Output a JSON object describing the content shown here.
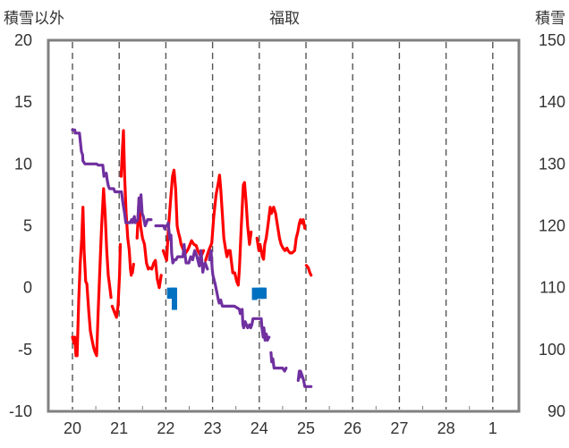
{
  "chart_data": {
    "type": "line",
    "title": "福取",
    "ylabel_left": "積雪以外",
    "ylabel_right": "積雪",
    "grid": true,
    "x_tick_labels": [
      "20",
      "21",
      "22",
      "23",
      "24",
      "25",
      "26",
      "27",
      "28",
      "1"
    ],
    "y_left": {
      "ticks": [
        "20",
        "15",
        "10",
        "5",
        "0",
        "-5",
        "-10"
      ],
      "range": [
        -10,
        20
      ]
    },
    "y_right": {
      "ticks": [
        "150",
        "140",
        "130",
        "120",
        "110",
        "100",
        "90"
      ],
      "range": [
        90,
        150
      ]
    },
    "series": [
      {
        "color": "#ff0000",
        "axis": "left",
        "segments": [
          [
            [
              0,
              -4
            ],
            [
              0.2,
              -4.5
            ],
            [
              0.3,
              -4
            ],
            [
              0.45,
              -5.5
            ],
            [
              0.6,
              -5.5
            ],
            [
              0.8,
              -1
            ],
            [
              1,
              2
            ],
            [
              1.2,
              4
            ],
            [
              1.35,
              6.5
            ],
            [
              1.5,
              3
            ],
            [
              1.7,
              0.5
            ],
            [
              1.85,
              0.3
            ],
            [
              2.1,
              -2
            ],
            [
              2.3,
              -3.5
            ],
            [
              2.5,
              -4.2
            ],
            [
              2.7,
              -4.8
            ],
            [
              2.9,
              -5.2
            ],
            [
              3.1,
              -5.5
            ],
            [
              3.3,
              -2
            ],
            [
              3.55,
              2
            ],
            [
              3.75,
              5
            ],
            [
              4.0,
              8
            ],
            [
              4.2,
              6
            ],
            [
              4.4,
              3
            ],
            [
              4.6,
              1
            ],
            [
              4.8,
              0
            ],
            [
              4.95,
              -0.8
            ]
          ],
          [
            [
              5.1,
              -1.5
            ],
            [
              5.4,
              -2
            ],
            [
              5.65,
              -2.4
            ],
            [
              5.85,
              -1.5
            ],
            [
              6.05,
              1
            ],
            [
              6.15,
              3.5
            ]
          ],
          [
            [
              6.25,
              9
            ],
            [
              6.4,
              11
            ],
            [
              6.55,
              12.7
            ],
            [
              6.7,
              9
            ],
            [
              6.9,
              6
            ],
            [
              7.1,
              4
            ],
            [
              7.3,
              3
            ],
            [
              7.45,
              1.5
            ],
            [
              7.55,
              1
            ]
          ],
          [
            [
              7.7,
              1.2
            ],
            [
              7.85,
              1.9
            ]
          ],
          [
            [
              8.3,
              4
            ],
            [
              8.55,
              7.2
            ],
            [
              8.75,
              5
            ],
            [
              9,
              4
            ],
            [
              9.25,
              3.5
            ],
            [
              9.5,
              2
            ],
            [
              9.75,
              1.5
            ],
            [
              9.9,
              1.6
            ],
            [
              10.2,
              1.5
            ],
            [
              10.45,
              2
            ],
            [
              10.65,
              2.2
            ],
            [
              10.9,
              0.7
            ],
            [
              11.15,
              0
            ],
            [
              11.4,
              1
            ]
          ],
          [
            [
              11.65,
              3
            ],
            [
              12.1,
              2.2
            ],
            [
              12.3,
              4.5
            ],
            [
              12.6,
              7
            ],
            [
              12.85,
              9
            ],
            [
              13.05,
              9.5
            ],
            [
              13.25,
              8
            ],
            [
              13.45,
              5
            ],
            [
              13.6,
              4.5
            ],
            [
              13.8,
              4
            ],
            [
              13.95,
              3.5
            ],
            [
              14.15,
              3.2
            ],
            [
              14.45,
              2.7
            ],
            [
              14.85,
              3.1
            ],
            [
              15.3,
              3.8
            ],
            [
              15.6,
              3.5
            ],
            [
              15.9,
              3.4
            ],
            [
              16.1,
              3
            ],
            [
              16.5,
              2.5
            ],
            [
              16.85,
              3
            ]
          ],
          [
            [
              17.1,
              2.2
            ],
            [
              17.5,
              3
            ],
            [
              17.9,
              3.6
            ],
            [
              18.15,
              5.7
            ],
            [
              18.45,
              7.5
            ],
            [
              18.75,
              8.5
            ],
            [
              18.9,
              9.1
            ],
            [
              19.05,
              8
            ],
            [
              19.25,
              6
            ],
            [
              19.45,
              4
            ],
            [
              19.7,
              3
            ],
            [
              19.85,
              2.5
            ],
            [
              20.05,
              3
            ],
            [
              20.25,
              3
            ],
            [
              20.4,
              2.2
            ],
            [
              20.6,
              1.2
            ],
            [
              20.85,
              1.2
            ],
            [
              21.1,
              0.5
            ],
            [
              21.3,
              0.2
            ],
            [
              21.45,
              1.5
            ],
            [
              21.65,
              4.5
            ],
            [
              21.85,
              7
            ],
            [
              21.95,
              8.3
            ],
            [
              22.1,
              8.5
            ],
            [
              22.3,
              7
            ],
            [
              22.5,
              5
            ],
            [
              22.75,
              3.5
            ],
            [
              22.95,
              4.5
            ]
          ],
          [
            [
              23.7,
              4
            ],
            [
              23.95,
              3
            ],
            [
              24.1,
              3.5
            ],
            [
              24.4,
              2.5
            ],
            [
              24.55,
              2.3
            ],
            [
              24.7,
              3.5
            ],
            [
              24.9,
              4
            ],
            [
              25.15,
              5.2
            ],
            [
              25.4,
              6.5
            ],
            [
              25.55,
              6
            ],
            [
              25.7,
              6.2
            ],
            [
              25.85,
              6.5
            ],
            [
              26.1,
              6
            ],
            [
              26.35,
              5
            ],
            [
              26.6,
              4
            ],
            [
              26.8,
              3.5
            ],
            [
              27.05,
              3.2
            ],
            [
              27.3,
              3
            ],
            [
              27.55,
              3.2
            ],
            [
              27.7,
              3
            ],
            [
              27.95,
              2.8
            ],
            [
              28.2,
              2.8
            ],
            [
              28.55,
              3
            ],
            [
              28.75,
              4
            ],
            [
              28.95,
              4.5
            ],
            [
              29.15,
              5.2
            ],
            [
              29.3,
              5.5
            ],
            [
              29.5,
              5.2
            ],
            [
              29.65,
              5.5
            ],
            [
              29.85,
              4.8
            ]
          ],
          [
            [
              30.05,
              1.8
            ],
            [
              30.3,
              1.6
            ],
            [
              30.5,
              1.2
            ],
            [
              30.65,
              1
            ]
          ]
        ]
      },
      {
        "color": "#7030a0",
        "axis": "right",
        "segments": [
          [
            [
              0,
              135.5
            ],
            [
              0.3,
              135.5
            ],
            [
              0.35,
              135
            ],
            [
              0.9,
              135
            ],
            [
              1.15,
              132
            ],
            [
              1.3,
              131.5
            ],
            [
              1.35,
              130.5
            ],
            [
              1.6,
              130
            ],
            [
              3.1,
              130
            ],
            [
              3.3,
              129.8
            ],
            [
              3.9,
              129.8
            ],
            [
              4.05,
              128
            ],
            [
              4.35,
              128.5
            ],
            [
              4.45,
              127.5
            ],
            [
              4.6,
              126.5
            ],
            [
              4.75,
              126
            ],
            [
              5.3,
              126
            ],
            [
              5.45,
              125.5
            ],
            [
              6.3,
              125.5
            ],
            [
              6.5,
              123.5
            ],
            [
              6.7,
              122
            ],
            [
              6.85,
              120.5
            ],
            [
              7.4,
              120.5
            ],
            [
              7.6,
              121
            ],
            [
              7.7,
              120.5
            ],
            [
              7.95,
              121.5
            ],
            [
              8.05,
              120.5
            ],
            [
              8.4,
              121
            ],
            [
              8.55,
              124.5
            ],
            [
              8.65,
              122.5
            ],
            [
              8.8,
              125
            ],
            [
              8.95,
              122
            ],
            [
              9.1,
              121.5
            ],
            [
              9.35,
              120
            ],
            [
              9.65,
              121
            ],
            [
              10.1,
              121
            ]
          ],
          [
            [
              10.7,
              120
            ],
            [
              11.7,
              120
            ],
            [
              11.85,
              119.5
            ],
            [
              12.0,
              120
            ],
            [
              12.2,
              120
            ],
            [
              12.3,
              120.5
            ],
            [
              12.5,
              117.8
            ],
            [
              12.65,
              118.5
            ],
            [
              12.75,
              115.5
            ],
            [
              12.9,
              114
            ],
            [
              13.1,
              114.5
            ],
            [
              13.3,
              114.5
            ],
            [
              13.5,
              115
            ],
            [
              14.2,
              115
            ],
            [
              14.35,
              117
            ],
            [
              14.45,
              115.5
            ],
            [
              14.6,
              114
            ],
            [
              14.95,
              114
            ],
            [
              15.2,
              115
            ],
            [
              15.45,
              114.5
            ],
            [
              15.7,
              116
            ],
            [
              16.0,
              115
            ],
            [
              16.3,
              113.5
            ],
            [
              16.5,
              116
            ],
            [
              16.75,
              112.5
            ],
            [
              16.9,
              113.5
            ],
            [
              17.05,
              114
            ],
            [
              17.35,
              113
            ]
          ],
          [
            [
              17.6,
              114.5
            ],
            [
              17.8,
              116
            ],
            [
              17.95,
              113
            ],
            [
              18.05,
              112
            ],
            [
              18.35,
              110.5
            ],
            [
              18.5,
              109.5
            ],
            [
              18.75,
              108
            ],
            [
              18.85,
              107.5
            ],
            [
              19.05,
              108
            ],
            [
              19.25,
              107
            ],
            [
              20.8,
              107
            ],
            [
              21.45,
              106.5
            ],
            [
              21.55,
              105.8
            ],
            [
              21.8,
              106.5
            ],
            [
              21.9,
              104
            ],
            [
              22.0,
              103.5
            ],
            [
              22.2,
              104.5
            ],
            [
              22.5,
              103.5
            ],
            [
              22.75,
              104
            ],
            [
              22.9,
              103.5
            ],
            [
              23.05,
              104
            ],
            [
              23.2,
              105
            ],
            [
              24.25,
              105
            ],
            [
              24.35,
              103.5
            ],
            [
              24.5,
              102
            ],
            [
              24.6,
              103.5
            ],
            [
              24.75,
              101.5
            ],
            [
              24.9,
              102.5
            ],
            [
              25.05,
              101.5
            ],
            [
              25.25,
              102
            ]
          ],
          [
            [
              25.5,
              99.5
            ],
            [
              25.6,
              98
            ],
            [
              25.75,
              98.5
            ],
            [
              25.9,
              97
            ],
            [
              26.25,
              97
            ],
            [
              27.0,
              97
            ],
            [
              27.25,
              96.5
            ],
            [
              27.45,
              97
            ]
          ],
          [
            [
              29.0,
              95
            ],
            [
              29.15,
              96.5
            ],
            [
              29.2,
              95.5
            ],
            [
              29.3,
              96.5
            ],
            [
              29.45,
              96
            ],
            [
              29.7,
              95
            ],
            [
              29.85,
              94
            ],
            [
              30.65,
              94
            ]
          ]
        ]
      }
    ],
    "bars": {
      "color": "#0070c0",
      "axis": "left",
      "items": [
        {
          "x": 12.5,
          "from": 0,
          "to": -0.9
        },
        {
          "x": 12.95,
          "from": 0,
          "to": -0.6
        },
        {
          "x": 13.1,
          "from": 0,
          "to": -1.8
        },
        {
          "x": 23.4,
          "from": 0,
          "to": -1
        },
        {
          "x": 24.0,
          "from": 0,
          "to": -0.9
        },
        {
          "x": 24.2,
          "from": 0,
          "to": -0.9
        },
        {
          "x": 24.4,
          "from": 0,
          "to": -0.9
        },
        {
          "x": 24.6,
          "from": 0,
          "to": -0.9
        }
      ]
    }
  }
}
